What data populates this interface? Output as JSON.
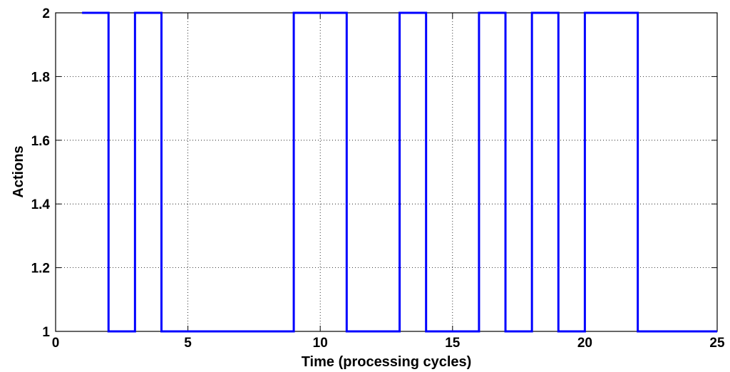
{
  "chart_data": {
    "type": "line",
    "title": "",
    "xlabel": "Time (processing cycles)",
    "ylabel": "Actions",
    "xlim": [
      0,
      25
    ],
    "ylim": [
      1,
      2
    ],
    "xticks": [
      0,
      5,
      10,
      15,
      20,
      25
    ],
    "xtick_labels": [
      "0",
      "5",
      "10",
      "15",
      "20",
      "25"
    ],
    "yticks": [
      1,
      1.2,
      1.4,
      1.6,
      1.8,
      2
    ],
    "ytick_labels": [
      "1",
      "1.2",
      "1.4",
      "1.6",
      "1.8",
      "2"
    ],
    "grid": true,
    "line_style": "step",
    "series": [
      {
        "color": "#0000ff",
        "x": [
          1,
          2,
          3,
          4,
          5,
          6,
          7,
          8,
          9,
          10,
          11,
          12,
          13,
          14,
          15,
          16,
          17,
          18,
          19,
          20,
          21,
          22,
          23,
          24,
          25
        ],
        "values": [
          2,
          1,
          2,
          1,
          1,
          1,
          1,
          1,
          2,
          2,
          1,
          1,
          2,
          1,
          1,
          2,
          1,
          2,
          1,
          2,
          2,
          1,
          1,
          1,
          1
        ]
      }
    ]
  }
}
